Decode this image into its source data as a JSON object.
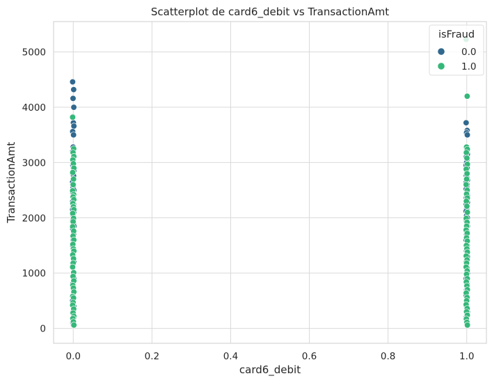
{
  "chart_data": {
    "type": "scatter",
    "title": "Scatterplot de card6_debit vs TransactionAmt",
    "xlabel": "card6_debit",
    "ylabel": "TransactionAmt",
    "xlim": [
      -0.05,
      1.05
    ],
    "ylim": [
      -270,
      5550
    ],
    "x_ticks": [
      0.0,
      0.2,
      0.4,
      0.6,
      0.8,
      1.0
    ],
    "x_tick_labels": [
      "0.0",
      "0.2",
      "0.4",
      "0.6",
      "0.8",
      "1.0"
    ],
    "y_ticks": [
      0,
      1000,
      2000,
      3000,
      4000,
      5000
    ],
    "y_tick_labels": [
      "0",
      "1000",
      "2000",
      "3000",
      "4000",
      "5000"
    ],
    "grid": true,
    "legend": {
      "title": "isFraud",
      "placement": "top-right",
      "entries": [
        "0.0",
        "1.0"
      ]
    },
    "colors": {
      "0.0": "#31688e",
      "1.0": "#35b779"
    },
    "series": [
      {
        "name": "0.0",
        "color": "#31688e",
        "x0_values": [
          4460,
          4320,
          4160,
          4000,
          3830,
          3720,
          3660,
          3560,
          3500,
          3280,
          3200,
          3100,
          3050,
          2980,
          2950,
          2900,
          2860,
          2800,
          2760,
          2700,
          2650,
          2600,
          2560,
          2500,
          2450,
          2400,
          2350,
          2300,
          2250,
          2200,
          2150,
          2100,
          2050,
          2000,
          1950,
          1900,
          1850,
          1800,
          1700,
          1600,
          1500,
          1400,
          1300,
          1200,
          1100,
          1000,
          900,
          800,
          700,
          600,
          500,
          400,
          300,
          200,
          100,
          60
        ],
        "x1_values": [
          3720,
          3580,
          3540,
          3500,
          3280,
          3200,
          3150,
          3100,
          3050,
          3000,
          2950,
          2900,
          2860,
          2800,
          2760,
          2720,
          2680,
          2640,
          2600,
          2560,
          2520,
          2480,
          2440,
          2400,
          2360,
          2320,
          2280,
          2240,
          2200,
          2160,
          2120,
          2080,
          2040,
          2000,
          1950,
          1900,
          1850,
          1800,
          1750,
          1700,
          1600,
          1500,
          1400,
          1300,
          1200,
          1100,
          1000,
          900,
          800,
          700,
          600,
          500,
          400,
          300,
          200,
          100,
          60
        ]
      },
      {
        "name": "1.0",
        "color": "#35b779",
        "x0_values": [
          3820,
          3250,
          3180,
          3110,
          3050,
          2980,
          2900,
          2820,
          2700,
          2600,
          2490,
          2420,
          2380,
          2330,
          2260,
          2200,
          2150,
          2080,
          1990,
          1930,
          1840,
          1760,
          1670,
          1600,
          1520,
          1440,
          1400,
          1330,
          1260,
          1180,
          1110,
          1010,
          940,
          860,
          780,
          730,
          660,
          580,
          550,
          470,
          420,
          350,
          280,
          220,
          180,
          120,
          60
        ],
        "x1_values": [
          5230,
          4200,
          3280,
          3240,
          3180,
          3080,
          2970,
          2880,
          2800,
          2700,
          2600,
          2500,
          2430,
          2360,
          2300,
          2210,
          2100,
          1990,
          1920,
          1850,
          1780,
          1720,
          1640,
          1580,
          1500,
          1440,
          1380,
          1310,
          1240,
          1180,
          1110,
          1040,
          980,
          900,
          840,
          770,
          700,
          640,
          560,
          500,
          430,
          360,
          300,
          240,
          170,
          110,
          60
        ]
      }
    ]
  }
}
